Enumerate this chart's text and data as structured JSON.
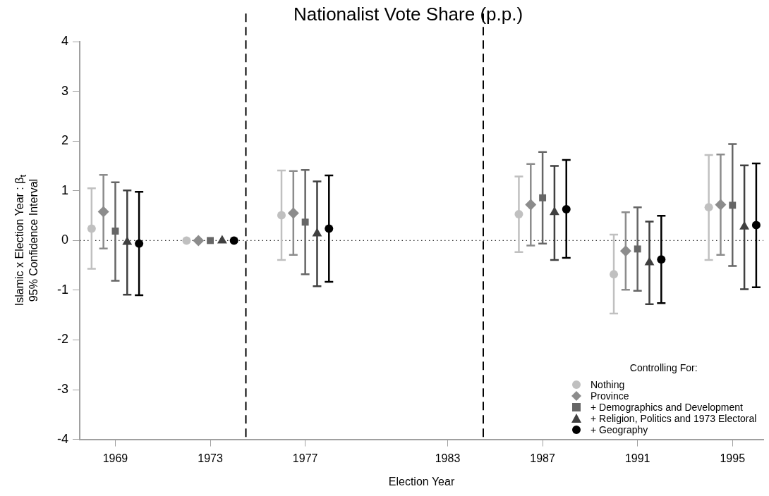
{
  "chart_data": {
    "type": "scatter",
    "title": "Nationalist Vote Share (p.p.)",
    "xlabel": "Election Year",
    "ylabel": "Islamic x Election Year : β$_{t}$\n95% Confidence Interval",
    "legend_title": "Controlling For:",
    "legend": "bottom right",
    "grid": false,
    "xlim": [
      1967.5,
      1996.3
    ],
    "xticks": [
      1969,
      1973,
      1977,
      1983,
      1987,
      1991,
      1995
    ],
    "ylim": [
      -4,
      4
    ],
    "yticks": [
      -4,
      -3,
      -2,
      -1,
      0,
      1,
      2,
      3,
      4
    ],
    "ref_lines": [
      {
        "axis": "y",
        "value": 0,
        "line_style": "dotted",
        "color": "#333333"
      },
      {
        "axis": "x",
        "value": 1974.5,
        "line_style": "dashed",
        "color": "#000000"
      },
      {
        "axis": "x",
        "value": 1984.5,
        "line_style": "dashed",
        "color": "#000000"
      }
    ],
    "series": [
      {
        "name": "Nothing",
        "color": "#c0c0c0",
        "marker": "circle",
        "x": [
          1968,
          1972,
          1976,
          1986,
          1990,
          1994
        ],
        "values": [
          0.24,
          0,
          0.51,
          0.53,
          -0.68,
          0.67
        ],
        "errors": [
          [
            -0.57,
            1.05
          ],
          null,
          [
            -0.39,
            1.41
          ],
          [
            -0.23,
            1.29
          ],
          [
            -1.47,
            0.12
          ],
          [
            -0.39,
            1.72
          ]
        ]
      },
      {
        "name": "Province",
        "color": "#8c8c8c",
        "marker": "diamond",
        "x": [
          1968.5,
          1972.5,
          1976.5,
          1986.5,
          1990.5,
          1994.5
        ],
        "values": [
          0.58,
          0,
          0.55,
          0.72,
          -0.21,
          0.72
        ],
        "errors": [
          [
            -0.16,
            1.32
          ],
          null,
          [
            -0.29,
            1.4
          ],
          [
            -0.1,
            1.54
          ],
          [
            -0.99,
            0.57
          ],
          [
            -0.29,
            1.73
          ]
        ]
      },
      {
        "name": "+ Demographics and Development",
        "color": "#666666",
        "marker": "square",
        "x": [
          1969,
          1973,
          1977,
          1987,
          1991,
          1995
        ],
        "values": [
          0.19,
          0,
          0.37,
          0.86,
          -0.17,
          0.71
        ],
        "errors": [
          [
            -0.81,
            1.17
          ],
          null,
          [
            -0.68,
            1.42
          ],
          [
            -0.06,
            1.78
          ],
          [
            -1.01,
            0.67
          ],
          [
            -0.51,
            1.94
          ]
        ]
      },
      {
        "name": "+ Religion, Politics and 1973 Electoral",
        "color": "#404040",
        "marker": "triangle",
        "x": [
          1969.5,
          1973.5,
          1977.5,
          1987.5,
          1991.5,
          1995.5
        ],
        "values": [
          -0.03,
          0,
          0.14,
          0.57,
          -0.44,
          0.28
        ],
        "errors": [
          [
            -1.09,
            1.01
          ],
          null,
          [
            -0.92,
            1.19
          ],
          [
            -0.39,
            1.5
          ],
          [
            -1.28,
            0.38
          ],
          [
            -0.98,
            1.51
          ]
        ]
      },
      {
        "name": "+ Geography",
        "color": "#000000",
        "marker": "circle",
        "x": [
          1970,
          1974,
          1978,
          1988,
          1992,
          1996
        ],
        "values": [
          -0.06,
          0,
          0.24,
          0.63,
          -0.38,
          0.31
        ],
        "errors": [
          [
            -1.1,
            0.98
          ],
          null,
          [
            -0.83,
            1.31
          ],
          [
            -0.35,
            1.62
          ],
          [
            -1.26,
            0.5
          ],
          [
            -0.94,
            1.55
          ]
        ]
      }
    ]
  }
}
